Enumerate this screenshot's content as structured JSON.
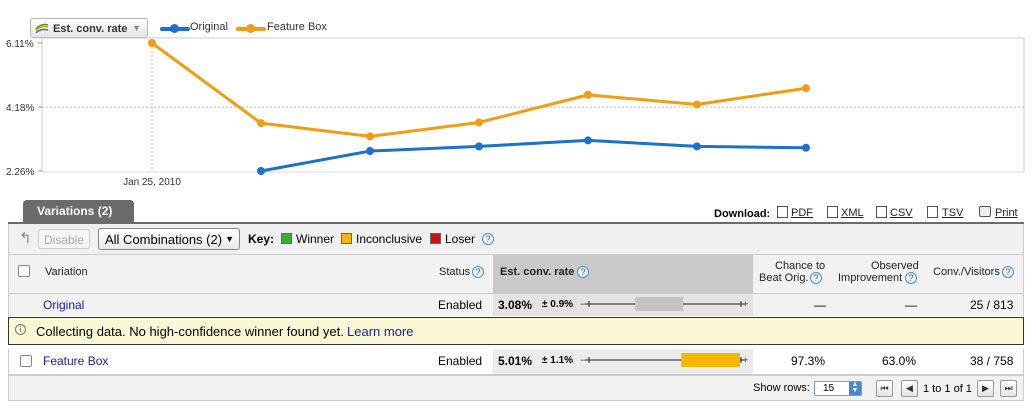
{
  "chart_header": {
    "metric_label": "Est. conv. rate",
    "legend": [
      {
        "name": "Original",
        "color": "#1a73c8"
      },
      {
        "name": "Feature Box",
        "color": "#f39c12"
      }
    ]
  },
  "chart_data": {
    "type": "line",
    "title": "",
    "ylabel": "Est. conv. rate",
    "y_ticks": [
      "6.11%",
      "4.18%",
      "2.26%"
    ],
    "ylim": [
      2.26,
      6.11
    ],
    "x_tick_label": "Jan 25, 2010",
    "x": [
      0,
      1,
      2,
      3,
      4,
      5,
      6
    ],
    "series": [
      {
        "name": "Original",
        "color": "#1a73c8",
        "values": [
          null,
          2.26,
          2.86,
          3.0,
          3.18,
          3.0,
          2.96
        ]
      },
      {
        "name": "Feature Box",
        "color": "#f39c12",
        "values": [
          6.11,
          3.7,
          3.3,
          3.72,
          4.55,
          4.26,
          4.75
        ]
      }
    ]
  },
  "tabs": {
    "variations": "Variations (2)"
  },
  "download": {
    "label": "Download:",
    "links": [
      "PDF",
      "XML",
      "CSV",
      "TSV",
      "Print"
    ]
  },
  "toolbar": {
    "disable": "Disable",
    "combinations": "All Combinations (2)",
    "key_label": "Key:",
    "winner": "Winner",
    "inconclusive": "Inconclusive",
    "loser": "Loser",
    "winner_color": "#3cab3c",
    "inconclusive_color": "#f5b800",
    "loser_color": "#cc1111"
  },
  "table": {
    "headers": {
      "variation": "Variation",
      "status": "Status",
      "conv_rate": "Est. conv. rate",
      "chance_1": "Chance to",
      "chance_2": "Beat Orig.",
      "improvement_1": "Observed",
      "improvement_2": "Improvement",
      "conv_visitors": "Conv./Visitors"
    },
    "rows": [
      {
        "name": "Original",
        "status": "Enabled",
        "rate": "3.08%",
        "interval": "± 0.9%",
        "chance": "—",
        "improvement": "—",
        "conv_visitors": "25 / 813",
        "range": [
          2.18,
          3.98
        ]
      },
      {
        "name": "Feature Box",
        "status": "Enabled",
        "rate": "5.01%",
        "interval": "± 1.1%",
        "chance": "97.3%",
        "improvement": "63.0%",
        "conv_visitors": "38 / 758",
        "range": [
          3.91,
          6.11
        ]
      }
    ],
    "bar_scale": [
      0.3,
      6.3
    ],
    "notice_text": "Collecting data. No high-confidence winner found yet.",
    "notice_link": "Learn more"
  },
  "pager": {
    "show_rows_label": "Show rows:",
    "rows_value": "15",
    "range_text": "1 to 1 of 1"
  }
}
